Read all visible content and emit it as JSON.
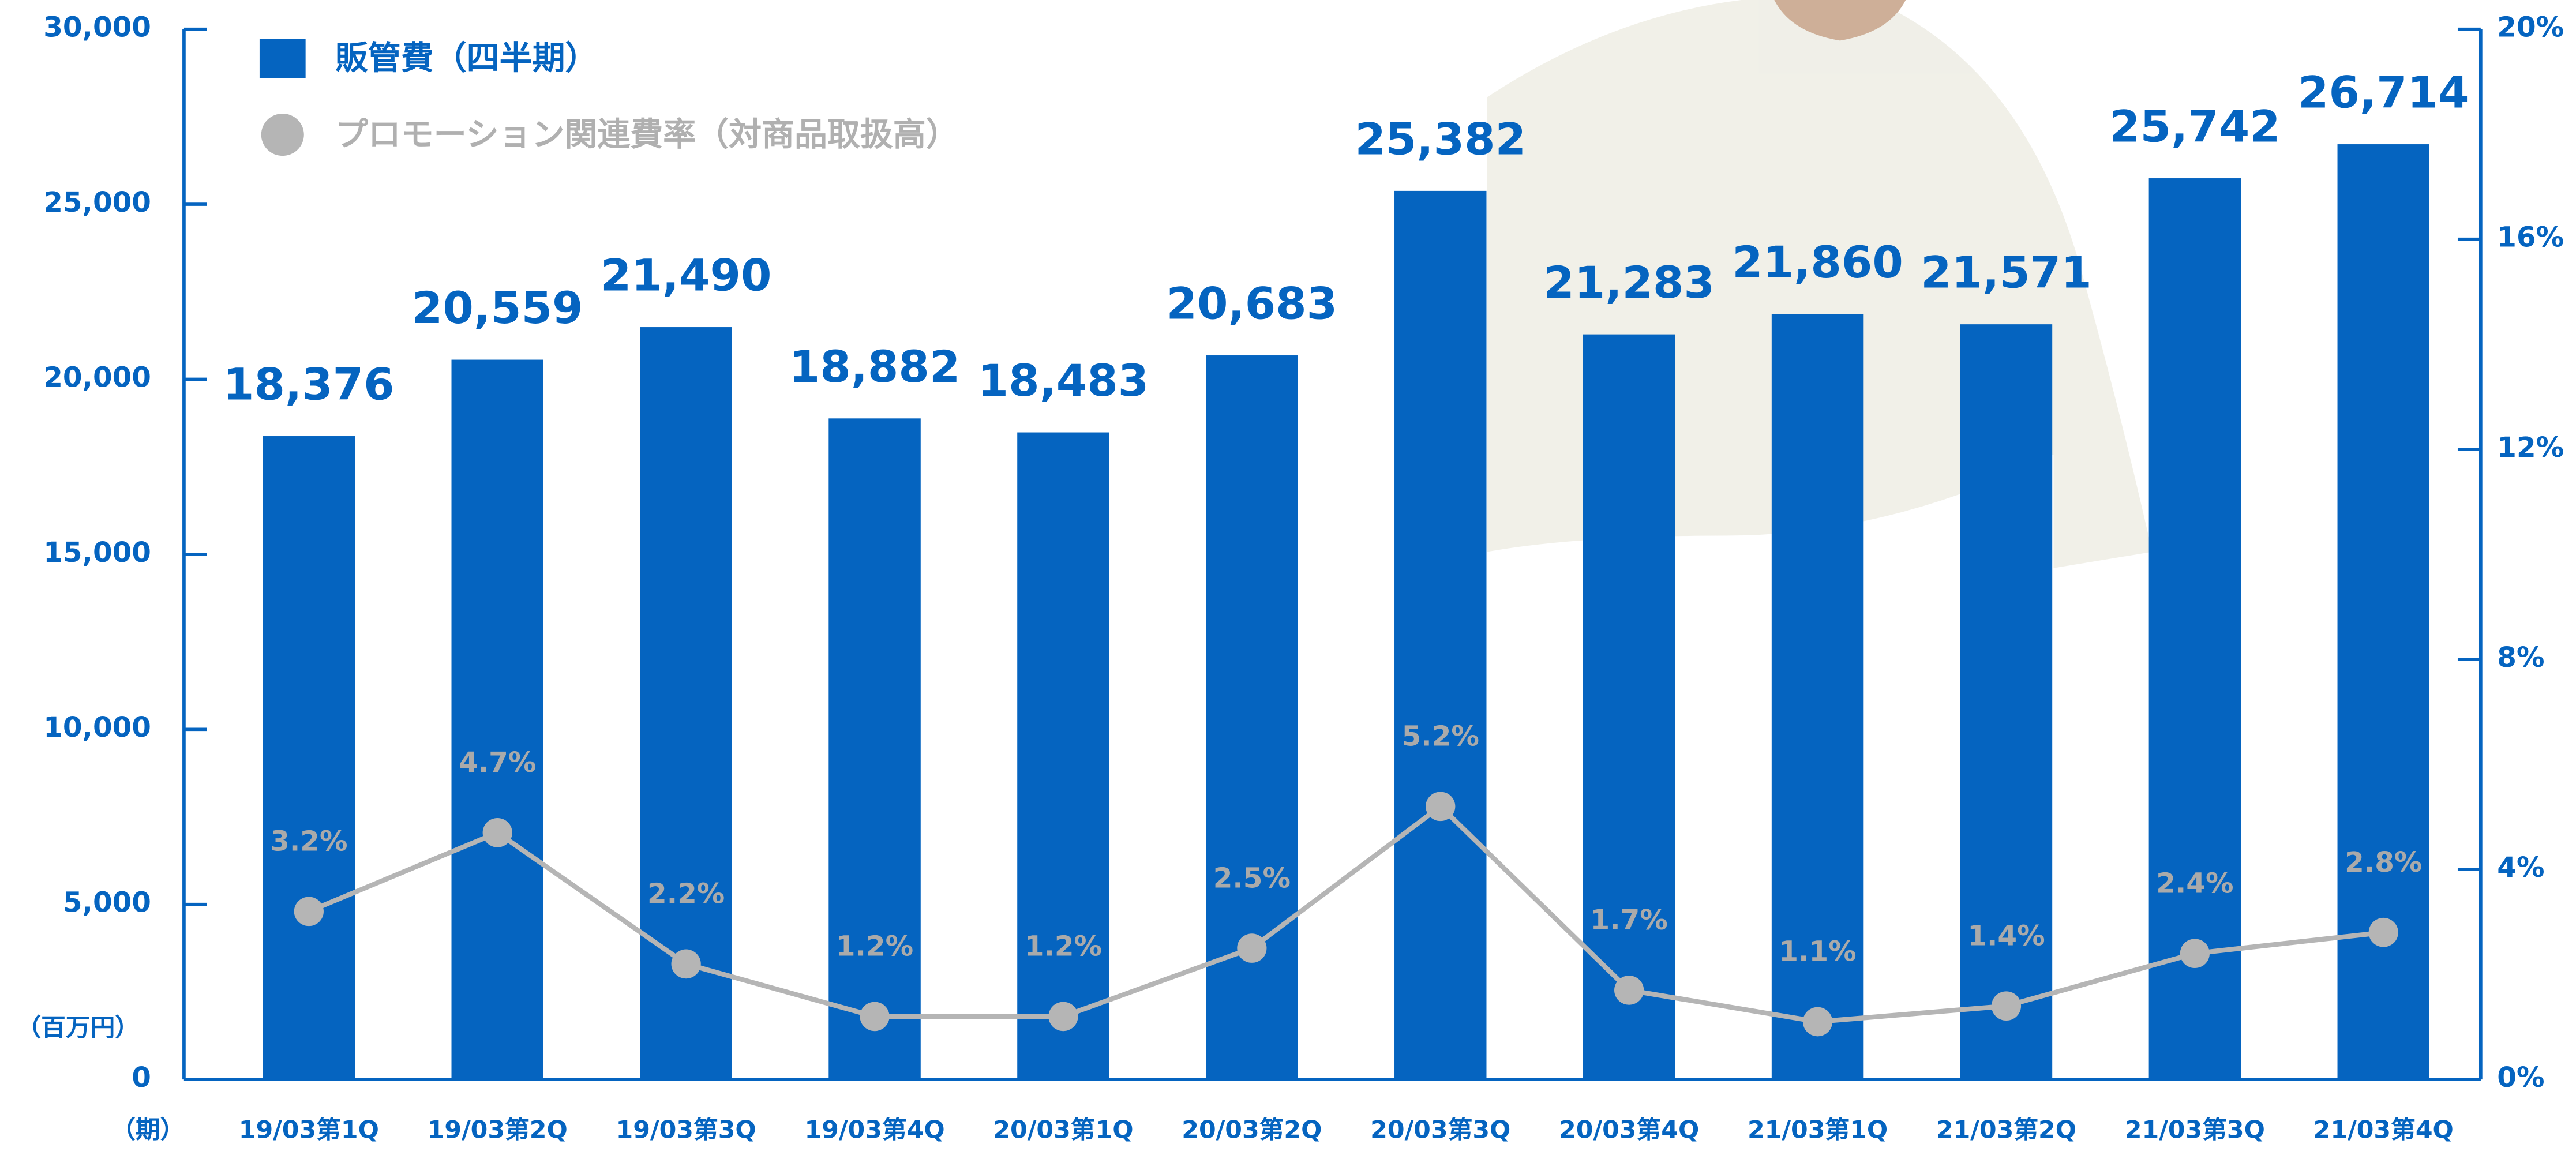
{
  "chart_data": {
    "type": "bar",
    "categories": [
      "19/03第1Q",
      "19/03第2Q",
      "19/03第3Q",
      "19/03第4Q",
      "20/03第1Q",
      "20/03第2Q",
      "20/03第3Q",
      "20/03第4Q",
      "21/03第1Q",
      "21/03第2Q",
      "21/03第3Q",
      "21/03第4Q"
    ],
    "series": [
      {
        "name": "販管費（四半期）",
        "color": "#0564c0",
        "values": [
          18376,
          20559,
          21490,
          18882,
          18483,
          20683,
          25382,
          21283,
          21860,
          21571,
          25742,
          26714
        ],
        "value_labels": [
          "18,376",
          "20,559",
          "21,490",
          "18,882",
          "18,483",
          "20,683",
          "25,382",
          "21,283",
          "21,860",
          "21,571",
          "25,742",
          "26,714"
        ]
      },
      {
        "name": "プロモーション関連費率（対商品取扱高）",
        "color": "#b5b5b5",
        "type": "line",
        "axis": "y2",
        "values": [
          3.2,
          4.7,
          2.2,
          1.2,
          1.2,
          2.5,
          5.2,
          1.7,
          1.1,
          1.4,
          2.4,
          2.8
        ],
        "value_labels": [
          "3.2%",
          "4.7%",
          "2.2%",
          "1.2%",
          "1.2%",
          "2.5%",
          "5.2%",
          "1.7%",
          "1.1%",
          "1.4%",
          "2.4%",
          "2.8%"
        ]
      }
    ],
    "ylim": [
      0,
      30000
    ],
    "yticks": [
      {
        "value": 0,
        "label": "0"
      },
      {
        "value": 5000,
        "label": "5,000"
      },
      {
        "value": 10000,
        "label": "10,000"
      },
      {
        "value": 15000,
        "label": "15,000"
      },
      {
        "value": 20000,
        "label": "20,000"
      },
      {
        "value": 25000,
        "label": "25,000"
      },
      {
        "value": 30000,
        "label": "30,000"
      }
    ],
    "y2lim": [
      0,
      20
    ],
    "y2ticks": [
      {
        "value": 0,
        "label": "0%"
      },
      {
        "value": 4,
        "label": "4%"
      },
      {
        "value": 8,
        "label": "8%"
      },
      {
        "value": 12,
        "label": "12%"
      },
      {
        "value": 16,
        "label": "16%"
      },
      {
        "value": 20,
        "label": "20%"
      }
    ],
    "y_label": "（百万円）",
    "x_label": "（期）",
    "legend": "upper left"
  }
}
